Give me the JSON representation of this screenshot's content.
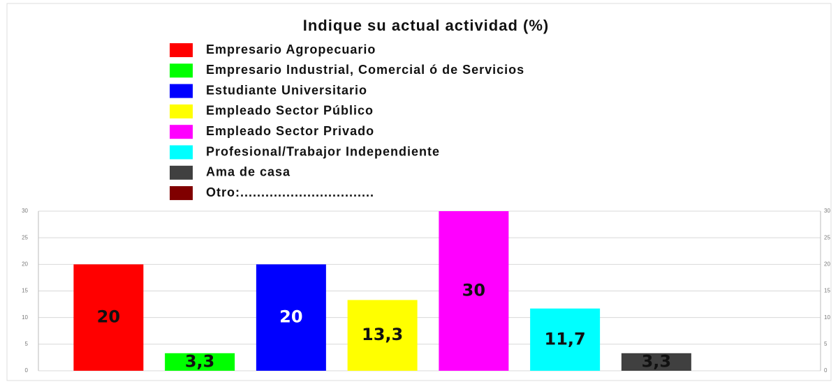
{
  "chart_data": {
    "type": "bar",
    "title": "Indique su actual actividad (%)",
    "categories": [
      "Empresario Agropecuario",
      "Empresario Industrial, Comercial ó de Servicios",
      "Estudiante Universitario",
      "Empleado Sector Público",
      "Empleado Sector Privado",
      "Profesional/Trabajor Independiente",
      "Ama de casa",
      "Otro:................................"
    ],
    "values": [
      20,
      3.3,
      20,
      13.3,
      30,
      11.7,
      3.3,
      0
    ],
    "value_labels": [
      "20",
      "3,3",
      "20",
      "13,3",
      "30",
      "11,7",
      "3,3",
      null
    ],
    "colors": [
      "#ff0000",
      "#00ff00",
      "#0000ff",
      "#ffff00",
      "#ff00ff",
      "#00ffff",
      "#404040",
      "#800000"
    ],
    "ylim": [
      0,
      30
    ],
    "yticks": [
      0,
      5,
      10,
      15,
      20,
      25,
      30
    ],
    "grid": true
  }
}
